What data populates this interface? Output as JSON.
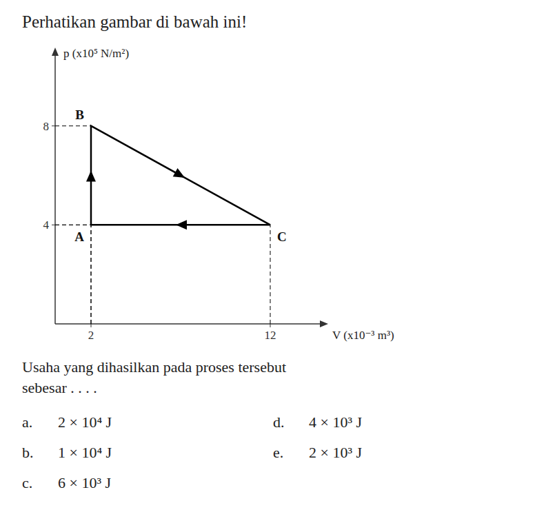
{
  "chart_data": {
    "type": "line",
    "title": "Perhatikan gambar di bawah ini!",
    "xlabel": "V (x10⁻³ m³)",
    "ylabel": "p (x10⁵ N/m²)",
    "x": [
      2,
      2,
      12,
      2
    ],
    "values": [
      4,
      8,
      4,
      4
    ],
    "point_labels": [
      "A",
      "B",
      "C",
      null
    ],
    "color": "#000000",
    "xlim": [
      0,
      15
    ],
    "ylim": [
      0,
      11
    ],
    "xticks": [
      2,
      12
    ],
    "yticks": [
      4,
      8
    ],
    "grid": false,
    "annotations": [
      "Usaha yang dihasilkan pada proses tersebut",
      "sebesar . . . ."
    ],
    "options": [
      {
        "label": "a.",
        "text": "2 × 10⁴ J"
      },
      {
        "label": "b.",
        "text": "1 × 10⁴ J"
      },
      {
        "label": "c.",
        "text": "6 × 10³ J"
      },
      {
        "label": "d.",
        "text": "4 × 10³ J"
      },
      {
        "label": "e.",
        "text": "2 × 10³ J"
      }
    ]
  }
}
